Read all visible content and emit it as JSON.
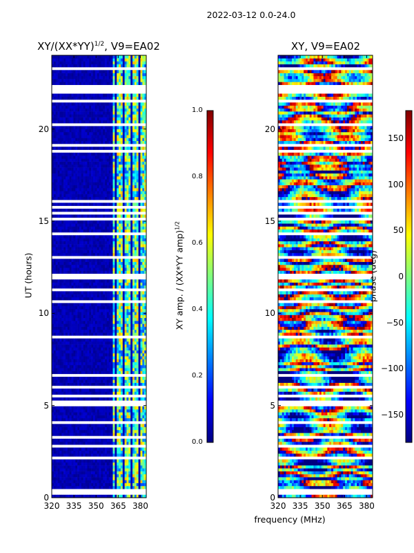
{
  "suptitle": "2022-03-12 0.0-24.0",
  "xlabel": "frequency (MHz)",
  "chart_data": [
    {
      "type": "heatmap",
      "title_prefix": "XY/(XX*YY)",
      "title_exp": "1/2",
      "title_suffix": ", V9=EA02",
      "ylabel": "UT (hours)",
      "xlim": [
        320,
        384
      ],
      "ylim": [
        0,
        24
      ],
      "xticks": [
        320,
        335,
        350,
        365,
        380
      ],
      "yticks": [
        0,
        5,
        10,
        15,
        20
      ],
      "colorbar": {
        "label_prefix": "XY amp. / (XX*YY amp)",
        "label_exp": "1/2",
        "range": [
          0.0,
          1.0
        ],
        "ticks": [
          "0.0",
          "0.2",
          "0.4",
          "0.6",
          "0.8",
          "1.0"
        ],
        "colormap": "jet"
      }
    },
    {
      "type": "heatmap",
      "title": "XY, V9=EA02",
      "ylabel": "",
      "xlim": [
        320,
        384
      ],
      "ylim": [
        0,
        24
      ],
      "xticks": [
        320,
        335,
        350,
        365,
        380
      ],
      "yticks": [
        0,
        5,
        10,
        15,
        20
      ],
      "colorbar": {
        "label": "phase (deg)",
        "range": [
          -180,
          180
        ],
        "ticks": [
          "150",
          "100",
          "50",
          "0",
          "−50",
          "−100",
          "−150"
        ],
        "tick_values": [
          150,
          100,
          50,
          0,
          -50,
          -100,
          -150
        ],
        "colormap": "jet"
      }
    }
  ]
}
